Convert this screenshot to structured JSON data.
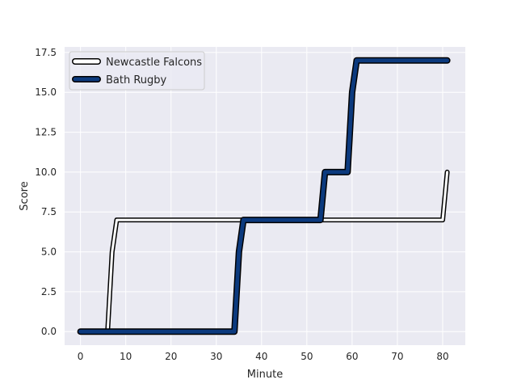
{
  "chart_data": {
    "type": "line",
    "xlabel": "Minute",
    "ylabel": "Score",
    "xlim": [
      -3.5,
      85
    ],
    "ylim": [
      -0.85,
      17.85
    ],
    "xticks": [
      0,
      10,
      20,
      30,
      40,
      50,
      60,
      70,
      80
    ],
    "yticks": [
      0.0,
      2.5,
      5.0,
      7.5,
      10.0,
      12.5,
      15.0,
      17.5
    ],
    "ytick_labels": [
      "0.0",
      "2.5",
      "5.0",
      "7.5",
      "10.0",
      "12.5",
      "15.0",
      "17.5"
    ],
    "grid": true,
    "legend_position": "upper-left",
    "style": {
      "plot_background": "#eaeaf2",
      "grid_color": "#ffffff",
      "outline_color": "#000000"
    },
    "series": [
      {
        "name": "Newcastle Falcons",
        "color": "#ffffff",
        "x": [
          0,
          6,
          7,
          8,
          80,
          81
        ],
        "y": [
          0,
          0,
          5,
          7,
          7,
          10
        ]
      },
      {
        "name": "Bath Rugby",
        "color": "#0c3a7e",
        "x": [
          0,
          34,
          35,
          36,
          53,
          54,
          59,
          60,
          61,
          81
        ],
        "y": [
          0,
          0,
          5,
          7,
          7,
          10,
          10,
          15,
          17,
          17
        ]
      }
    ]
  }
}
